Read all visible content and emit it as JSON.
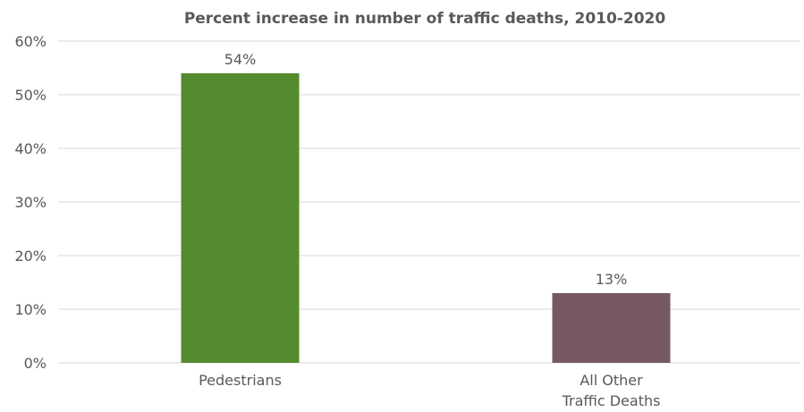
{
  "chart_data": {
    "type": "bar",
    "title": "Percent increase in number of traffic deaths, 2010-2020",
    "categories": [
      "Pedestrians",
      "All Other\nTraffic Deaths"
    ],
    "values": [
      54,
      13
    ],
    "data_labels": [
      "54%",
      "13%"
    ],
    "colors": [
      "#548b2f",
      "#765963"
    ],
    "ylim": [
      0,
      60
    ],
    "yticks": [
      0,
      10,
      20,
      30,
      40,
      50,
      60
    ],
    "ytick_labels": [
      "0%",
      "10%",
      "20%",
      "30%",
      "40%",
      "50%",
      "60%"
    ],
    "xlabel": "",
    "ylabel": "",
    "grid": true,
    "legend": "none"
  }
}
